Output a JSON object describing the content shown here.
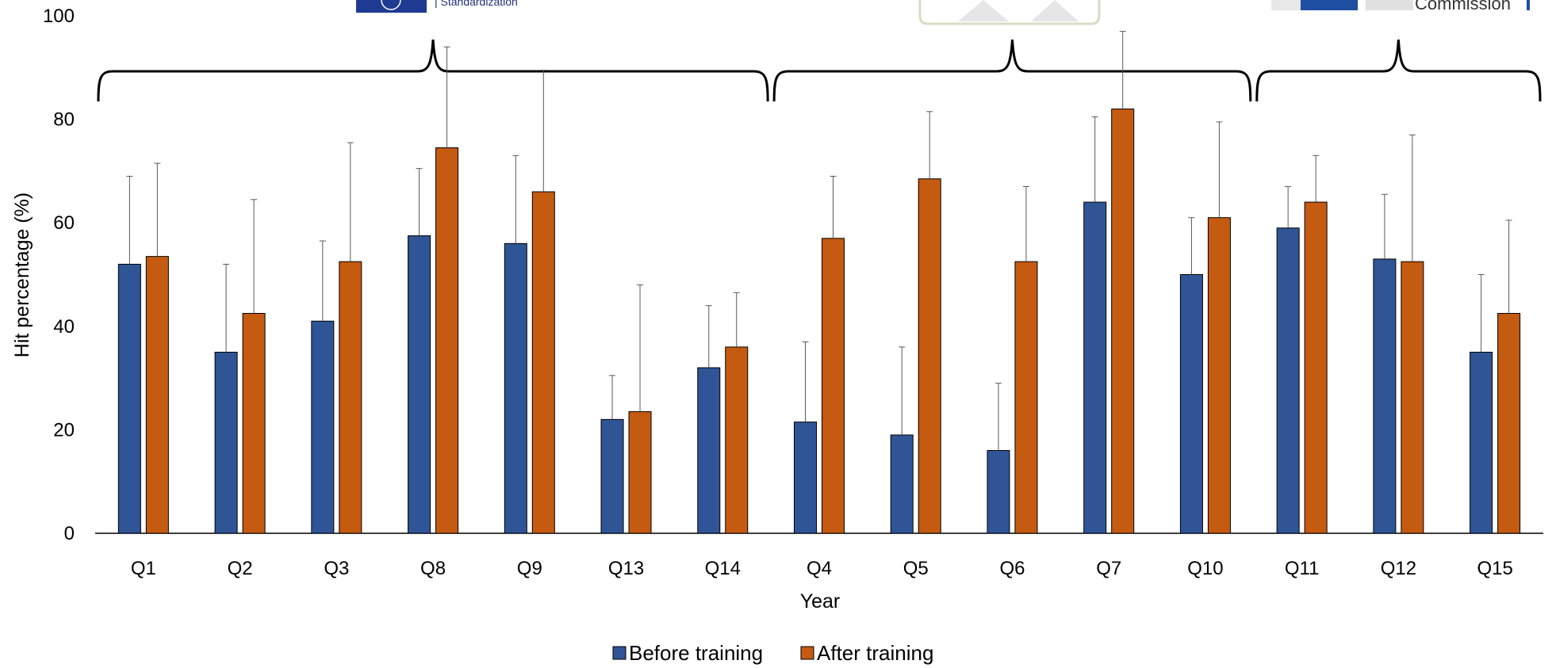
{
  "chart_data": {
    "type": "bar",
    "title": "",
    "xlabel": "Year",
    "ylabel": "Hit percentage (%)",
    "ylim": [
      0,
      100
    ],
    "yticks": [
      0,
      20,
      40,
      60,
      80,
      100
    ],
    "categories": [
      "Q1",
      "Q2",
      "Q3",
      "Q8",
      "Q9",
      "Q13",
      "Q14",
      "Q4",
      "Q5",
      "Q6",
      "Q7",
      "Q10",
      "Q11",
      "Q12",
      "Q15"
    ],
    "series": [
      {
        "name": "Before training",
        "color": "#2F5597",
        "values": [
          52,
          35,
          41,
          57.5,
          56,
          22,
          32,
          21.5,
          19,
          16,
          64,
          50,
          59,
          53,
          35
        ],
        "error_upper": [
          69,
          52,
          56.5,
          70.5,
          73,
          30.5,
          44,
          37,
          36,
          29,
          80.5,
          61,
          67,
          65.5,
          50
        ]
      },
      {
        "name": "After training",
        "color": "#C55A11",
        "values": [
          53.5,
          42.5,
          52.5,
          74.5,
          66,
          23.5,
          36,
          57,
          68.5,
          52.5,
          82,
          61,
          64,
          52.5,
          42.5
        ],
        "error_upper": [
          71.5,
          64.5,
          75.5,
          94,
          89.5,
          48,
          46.5,
          69,
          81.5,
          67,
          97,
          79.5,
          73,
          77,
          60.5
        ]
      }
    ],
    "groups": [
      {
        "start": 0,
        "end": 6
      },
      {
        "start": 7,
        "end": 11
      },
      {
        "start": 12,
        "end": 14
      }
    ],
    "legend_position": "bottom-center",
    "grid": false
  },
  "logos": {
    "left_caption": "| Standardization",
    "right_caption": "Commission"
  }
}
